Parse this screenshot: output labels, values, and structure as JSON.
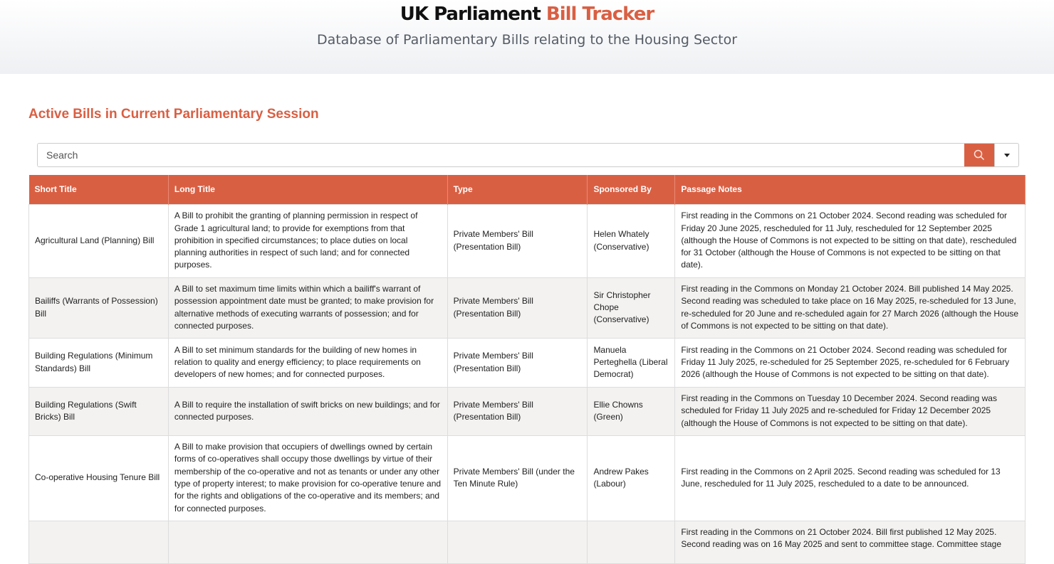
{
  "header": {
    "title_main": "UK Parliament",
    "title_accent": "Bill Tracker",
    "subtitle": "Database of Parliamentary Bills relating to the Housing Sector"
  },
  "section_title": "Active Bills in Current Parliamentary Session",
  "search": {
    "placeholder": "Search",
    "value": "",
    "search_icon": "search-icon",
    "dropdown_icon": "caret-down-icon"
  },
  "colors": {
    "accent": "#d95f43"
  },
  "table": {
    "columns": [
      "Short Title",
      "Long Title",
      "Type",
      "Sponsored By",
      "Passage Notes"
    ],
    "rows": [
      {
        "short": "Agricultural Land (Planning) Bill",
        "long": "A Bill to prohibit the granting of planning permission in respect of Grade 1 agricultural land; to provide for exemptions from that prohibition in specified circumstances; to place duties on local planning authorities in respect of such land; and for connected purposes.",
        "type": "Private Members' Bill (Presentation Bill)",
        "sponsor": "Helen Whately (Conservative)",
        "notes": "First reading in the Commons on 21 October 2024. Second reading was scheduled for Friday 20 June 2025, rescheduled for 11 July, rescheduled for 12 September 2025 (although the House of Commons is not expected to be sitting on that date), rescheduled for 31 October (although the House of Commons is not expected to be sitting on that date)."
      },
      {
        "short": "Bailiffs (Warrants of Possession) Bill",
        "long": "A Bill to set maximum time limits within which a bailiff's warrant of possession appointment date must be granted; to make provision for alternative methods of executing warrants of possession; and for connected purposes.",
        "type": "Private Members' Bill (Presentation Bill)",
        "sponsor": "Sir Christopher Chope (Conservative)",
        "notes": "First reading in the Commons on Monday 21 October 2024. Bill published 14 May 2025. Second reading was scheduled to take place on 16 May 2025, re-scheduled for 13 June, re-scheduled for 20 June and re-scheduled again for 27 March 2026 (although the House of Commons is not expected to be sitting on that date)."
      },
      {
        "short": "Building Regulations (Minimum Standards) Bill",
        "long": "A Bill to set minimum standards for the building of new homes in relation to quality and energy efficiency; to place requirements on developers of new homes; and for connected purposes.",
        "type": "Private Members' Bill (Presentation Bill)",
        "sponsor": "Manuela Perteghella (Liberal Democrat)",
        "notes": "First reading in the Commons on 21 October 2024. Second reading was scheduled for Friday 11 July 2025, re-scheduled for 25 September 2025, re-scheduled for 6 February 2026 (although the House of Commons is not expected to be sitting on that date)."
      },
      {
        "short": "Building Regulations (Swift Bricks) Bill",
        "long": "A Bill to require the installation of swift bricks on new buildings; and for connected purposes.",
        "type": "Private Members' Bill (Presentation Bill)",
        "sponsor": "Ellie Chowns (Green)",
        "notes": "First reading in the Commons on Tuesday 10 December 2024. Second reading was scheduled for Friday 11 July 2025 and re-scheduled for Friday 12 December 2025 (although the House of Commons is not expected to be sitting on that date)."
      },
      {
        "short": "Co-operative Housing Tenure Bill",
        "long": "A Bill to make provision that occupiers of dwellings owned by certain forms of co-operatives shall occupy those dwellings by virtue of their membership of the co-operative and not as tenants or under any other type of property interest; to make provision for co-operative tenure and for the rights and obligations of the co-operative and its members; and for connected purposes.",
        "type": "Private Members' Bill (under the Ten Minute Rule)",
        "sponsor": "Andrew Pakes (Labour)",
        "notes": "First reading in the Commons on 2 April 2025. Second reading was scheduled for 13 June, rescheduled for 11 July 2025, rescheduled to a date to be announced."
      },
      {
        "short": "",
        "long": "",
        "type": "",
        "sponsor": "",
        "notes": "First reading in the Commons on 21 October 2024. Bill first published 12 May 2025. Second reading was on 16 May 2025 and sent to committee stage. Committee stage"
      }
    ]
  }
}
